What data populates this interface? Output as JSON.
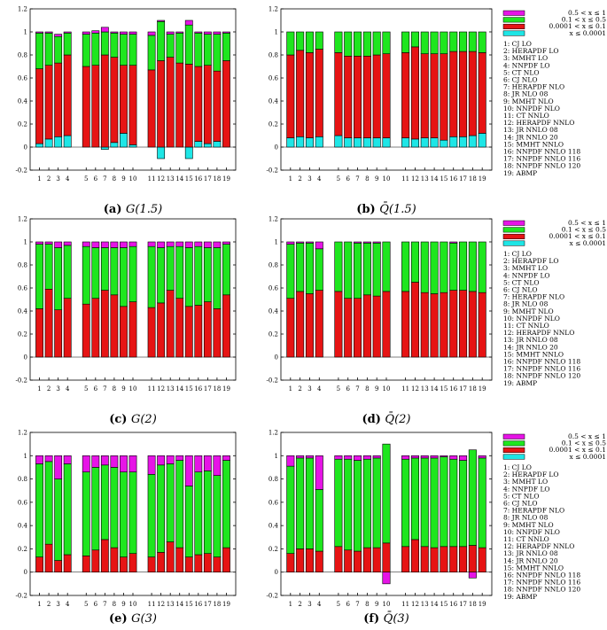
{
  "colors": {
    "bin_high": "#e614e6",
    "bin_mid": "#1ee61e",
    "bin_low": "#e61414",
    "bin_tiny": "#1ee6e6"
  },
  "legend": {
    "bins": [
      "0.5 < x ≤ 1",
      "0.1 < x ≤ 0.5",
      "0.0001 < x ≤ 0.1",
      "x ≤ 0.0001"
    ],
    "sets": [
      "1: CJ LO",
      "2: HERAPDF LO",
      "3: MMHT LO",
      "4: NNPDF LO",
      "5: CT NLO",
      "6: CJ NLO",
      "7: HERAPDF NLO",
      "8: JR NLO 08",
      "9: MMHT NLO",
      "10: NNPDF NLO",
      "11: CT NNLO",
      "12: HERAPDF NNLO",
      "13: JR NNLO 08",
      "14: JR NNLO 20",
      "15: MMHT NNLO",
      "16: NNPDF NNLO 118",
      "17: NNPDF NNLO 116",
      "18: NNPDF NNLO 120",
      "19: ABMP"
    ]
  },
  "chart_data": [
    {
      "type": "bar",
      "stacked": true,
      "caption_letter": "(a)",
      "caption_label": "G(1.5)",
      "categories": [
        "1",
        "2",
        "3",
        "4",
        "5",
        "6",
        "7",
        "8",
        "9",
        "10",
        "11",
        "12",
        "13",
        "14",
        "15",
        "16",
        "17",
        "18",
        "19"
      ],
      "ylim": [
        -0.2,
        1.2
      ],
      "yticks": [
        "-0.2",
        "0",
        "0.2",
        "0.4",
        "0.6",
        "0.8",
        "1",
        "1.2"
      ],
      "series": [
        {
          "name": "x ≤ 0.0001",
          "values": [
            0.03,
            0.07,
            0.09,
            0.1,
            0,
            0,
            -0.02,
            0.04,
            0.12,
            0.02,
            0,
            -0.1,
            0,
            0,
            -0.1,
            0.05,
            0.03,
            0.05,
            0
          ]
        },
        {
          "name": "0.0001 < x ≤ 0.1",
          "values": [
            0.65,
            0.64,
            0.64,
            0.7,
            0.7,
            0.71,
            0.8,
            0.74,
            0.59,
            0.69,
            0.67,
            0.75,
            0.78,
            0.73,
            0.72,
            0.65,
            0.68,
            0.61,
            0.75
          ]
        },
        {
          "name": "0.1 < x ≤ 0.5",
          "values": [
            0.31,
            0.28,
            0.23,
            0.19,
            0.28,
            0.28,
            0.2,
            0.21,
            0.27,
            0.27,
            0.3,
            0.34,
            0.2,
            0.26,
            0.34,
            0.29,
            0.27,
            0.32,
            0.24
          ]
        },
        {
          "name": "0.5 < x ≤ 1",
          "values": [
            0.01,
            0.01,
            0.02,
            0.01,
            0.02,
            0.02,
            0.04,
            0.01,
            0.02,
            0.02,
            0.03,
            0.01,
            0.02,
            0.01,
            0.04,
            0.01,
            0.02,
            0.02,
            0.01
          ]
        }
      ]
    },
    {
      "type": "bar",
      "stacked": true,
      "caption_letter": "(b)",
      "caption_label": "Q̄(1.5)",
      "categories": [
        "1",
        "2",
        "3",
        "4",
        "5",
        "6",
        "7",
        "8",
        "9",
        "10",
        "11",
        "12",
        "13",
        "14",
        "15",
        "16",
        "17",
        "18",
        "19"
      ],
      "ylim": [
        -0.2,
        1.2
      ],
      "yticks": [
        "-0.2",
        "0",
        "0.2",
        "0.4",
        "0.6",
        "0.8",
        "1",
        "1.2"
      ],
      "series": [
        {
          "name": "x ≤ 0.0001",
          "values": [
            0.08,
            0.09,
            0.08,
            0.09,
            0.1,
            0.08,
            0.08,
            0.08,
            0.08,
            0.08,
            0.08,
            0.07,
            0.08,
            0.08,
            0.06,
            0.09,
            0.09,
            0.1,
            0.12
          ]
        },
        {
          "name": "0.0001 < x ≤ 0.1",
          "values": [
            0.72,
            0.75,
            0.74,
            0.76,
            0.72,
            0.71,
            0.71,
            0.71,
            0.72,
            0.73,
            0.74,
            0.8,
            0.73,
            0.73,
            0.75,
            0.74,
            0.74,
            0.73,
            0.7
          ]
        },
        {
          "name": "0.1 < x ≤ 0.5",
          "values": [
            0.2,
            0.16,
            0.18,
            0.15,
            0.18,
            0.21,
            0.21,
            0.21,
            0.2,
            0.19,
            0.18,
            0.13,
            0.19,
            0.19,
            0.19,
            0.17,
            0.17,
            0.17,
            0.18
          ]
        },
        {
          "name": "0.5 < x ≤ 1",
          "values": [
            0,
            0,
            0,
            0,
            0,
            0,
            0,
            0,
            0,
            0,
            0,
            0,
            0,
            0,
            0,
            0,
            0,
            0,
            0
          ]
        }
      ]
    },
    {
      "type": "bar",
      "stacked": true,
      "caption_letter": "(c)",
      "caption_label": "G(2)",
      "categories": [
        "1",
        "2",
        "3",
        "4",
        "5",
        "6",
        "7",
        "8",
        "9",
        "10",
        "11",
        "12",
        "13",
        "14",
        "15",
        "16",
        "17",
        "18",
        "19"
      ],
      "ylim": [
        -0.2,
        1.2
      ],
      "yticks": [
        "-0.2",
        "0",
        "0.2",
        "0.4",
        "0.6",
        "0.8",
        "1",
        "1.2"
      ],
      "series": [
        {
          "name": "x ≤ 0.0001",
          "values": [
            0,
            0,
            0,
            0,
            0,
            0,
            0,
            0,
            0,
            0,
            0,
            0,
            0,
            0,
            0,
            0,
            0,
            0,
            0
          ]
        },
        {
          "name": "0.0001 < x ≤ 0.1",
          "values": [
            0.42,
            0.59,
            0.41,
            0.51,
            0.46,
            0.51,
            0.58,
            0.54,
            0.44,
            0.48,
            0.43,
            0.47,
            0.58,
            0.51,
            0.44,
            0.45,
            0.48,
            0.42,
            0.54
          ]
        },
        {
          "name": "0.1 < x ≤ 0.5",
          "values": [
            0.56,
            0.39,
            0.54,
            0.46,
            0.5,
            0.44,
            0.37,
            0.41,
            0.51,
            0.48,
            0.53,
            0.48,
            0.38,
            0.45,
            0.51,
            0.51,
            0.47,
            0.53,
            0.44
          ]
        },
        {
          "name": "0.5 < x ≤ 1",
          "values": [
            0.02,
            0.02,
            0.05,
            0.03,
            0.04,
            0.05,
            0.05,
            0.05,
            0.05,
            0.04,
            0.04,
            0.05,
            0.04,
            0.04,
            0.05,
            0.04,
            0.05,
            0.05,
            0.02
          ]
        }
      ]
    },
    {
      "type": "bar",
      "stacked": true,
      "caption_letter": "(d)",
      "caption_label": "Q̄(2)",
      "categories": [
        "1",
        "2",
        "3",
        "4",
        "5",
        "6",
        "7",
        "8",
        "9",
        "10",
        "11",
        "12",
        "13",
        "14",
        "15",
        "16",
        "17",
        "18",
        "19"
      ],
      "ylim": [
        -0.2,
        1.2
      ],
      "yticks": [
        "-0.2",
        "0",
        "0.2",
        "0.4",
        "0.6",
        "0.8",
        "1",
        "1.2"
      ],
      "series": [
        {
          "name": "x ≤ 0.0001",
          "values": [
            0,
            0,
            0,
            0,
            0,
            0,
            0,
            0,
            0,
            0,
            0,
            0,
            0,
            0,
            0,
            0,
            0,
            0,
            0
          ]
        },
        {
          "name": "0.0001 < x ≤ 0.1",
          "values": [
            0.51,
            0.57,
            0.55,
            0.58,
            0.57,
            0.51,
            0.51,
            0.54,
            0.53,
            0.57,
            0.57,
            0.65,
            0.56,
            0.55,
            0.56,
            0.58,
            0.58,
            0.57,
            0.56
          ]
        },
        {
          "name": "0.1 < x ≤ 0.5",
          "values": [
            0.47,
            0.42,
            0.44,
            0.36,
            0.43,
            0.49,
            0.48,
            0.45,
            0.46,
            0.43,
            0.43,
            0.35,
            0.44,
            0.45,
            0.44,
            0.41,
            0.42,
            0.43,
            0.44
          ]
        },
        {
          "name": "0.5 < x ≤ 1",
          "values": [
            0.02,
            0.01,
            0.01,
            0.06,
            0,
            0,
            0.01,
            0.01,
            0.01,
            0,
            0,
            0,
            0,
            0,
            0,
            0.01,
            0,
            0,
            0
          ]
        }
      ]
    },
    {
      "type": "bar",
      "stacked": true,
      "caption_letter": "(e)",
      "caption_label": "G(3)",
      "categories": [
        "1",
        "2",
        "3",
        "4",
        "5",
        "6",
        "7",
        "8",
        "9",
        "10",
        "11",
        "12",
        "13",
        "14",
        "15",
        "16",
        "17",
        "18",
        "19"
      ],
      "ylim": [
        -0.2,
        1.2
      ],
      "yticks": [
        "-0.2",
        "0",
        "0.2",
        "0.4",
        "0.6",
        "0.8",
        "1",
        "1.2"
      ],
      "series": [
        {
          "name": "x ≤ 0.0001",
          "values": [
            0,
            0,
            0,
            0,
            0,
            0,
            0,
            0,
            0,
            0,
            0,
            0,
            0,
            0,
            0,
            0,
            0,
            0,
            0
          ]
        },
        {
          "name": "0.0001 < x ≤ 0.1",
          "values": [
            0.13,
            0.24,
            0.1,
            0.15,
            0.14,
            0.19,
            0.28,
            0.21,
            0.13,
            0.16,
            0.13,
            0.17,
            0.26,
            0.21,
            0.13,
            0.15,
            0.16,
            0.13,
            0.21
          ]
        },
        {
          "name": "0.1 < x ≤ 0.5",
          "values": [
            0.8,
            0.71,
            0.7,
            0.78,
            0.72,
            0.71,
            0.64,
            0.69,
            0.73,
            0.7,
            0.71,
            0.75,
            0.67,
            0.75,
            0.61,
            0.71,
            0.71,
            0.7,
            0.75
          ]
        },
        {
          "name": "0.5 < x ≤ 1",
          "values": [
            0.07,
            0.05,
            0.2,
            0.07,
            0.14,
            0.1,
            0.08,
            0.1,
            0.14,
            0.14,
            0.16,
            0.08,
            0.07,
            0.04,
            0.26,
            0.14,
            0.13,
            0.17,
            0.04
          ]
        }
      ]
    },
    {
      "type": "bar",
      "stacked": true,
      "caption_letter": "(f)",
      "caption_label": "Q̄(3)",
      "categories": [
        "1",
        "2",
        "3",
        "4",
        "5",
        "6",
        "7",
        "8",
        "9",
        "10",
        "11",
        "12",
        "13",
        "14",
        "15",
        "16",
        "17",
        "18",
        "19"
      ],
      "ylim": [
        -0.2,
        1.2
      ],
      "yticks": [
        "-0.2",
        "0",
        "0.2",
        "0.4",
        "0.6",
        "0.8",
        "1",
        "1.2"
      ],
      "series": [
        {
          "name": "x ≤ 0.0001",
          "values": [
            0,
            0,
            0,
            0,
            0,
            0,
            0,
            0,
            0,
            0,
            0,
            0,
            0,
            0,
            0,
            0,
            0,
            0,
            0
          ]
        },
        {
          "name": "0.0001 < x ≤ 0.1",
          "values": [
            0.16,
            0.2,
            0.2,
            0.18,
            0.22,
            0.19,
            0.18,
            0.21,
            0.21,
            0.25,
            0.22,
            0.28,
            0.22,
            0.21,
            0.22,
            0.22,
            0.22,
            0.23,
            0.21
          ]
        },
        {
          "name": "0.1 < x ≤ 0.5",
          "values": [
            0.75,
            0.78,
            0.78,
            0.53,
            0.75,
            0.78,
            0.78,
            0.76,
            0.77,
            0.85,
            0.75,
            0.7,
            0.76,
            0.77,
            0.77,
            0.75,
            0.74,
            0.82,
            0.77
          ]
        },
        {
          "name": "0.5 < x ≤ 1",
          "values": [
            0.09,
            0.02,
            0.02,
            0.29,
            0.03,
            0.03,
            0.04,
            0.03,
            0.02,
            -0.1,
            0.03,
            0.02,
            0.02,
            0.02,
            0.01,
            0.03,
            0.04,
            -0.05,
            0.02
          ]
        }
      ]
    }
  ]
}
